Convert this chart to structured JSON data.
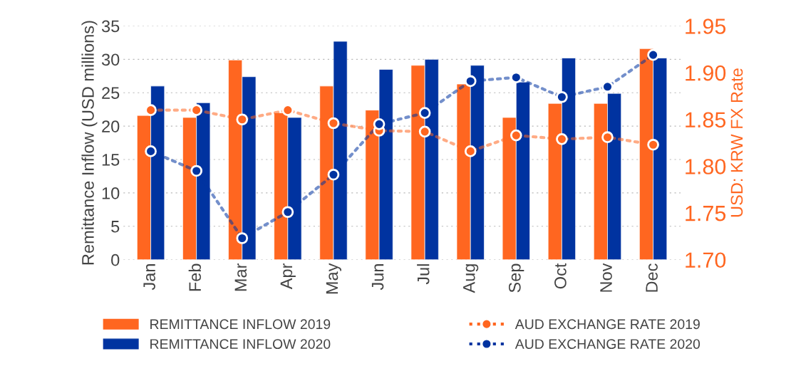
{
  "chart_data": {
    "type": "bar",
    "ylabel": "Remittance Inflow (USD millions)",
    "y2label": "USD: KRW FX Rate",
    "categories": [
      "Jan",
      "Feb",
      "Mar",
      "Apr",
      "May",
      "Jun",
      "Jul",
      "Aug",
      "Sep",
      "Oct",
      "Nov",
      "Dec"
    ],
    "series": [
      {
        "name": "REMITTANCE INFLOW 2019",
        "color": "#ff6620",
        "values": [
          21.6,
          21.3,
          29.9,
          22.0,
          26.0,
          22.4,
          29.1,
          26.3,
          21.3,
          23.4,
          23.4,
          31.6
        ]
      },
      {
        "name": "REMITTANCE INFLOW 2020",
        "color": "#0033a0",
        "values": [
          26.0,
          23.5,
          27.4,
          21.3,
          32.7,
          28.5,
          30.0,
          29.1,
          26.6,
          30.2,
          24.9,
          30.2
        ]
      },
      {
        "name": "AUD EXCHANGE RATE 2019",
        "type": "line",
        "axis": "y2",
        "color": "#ff6620",
        "marker": "circle",
        "line_style": "dotted",
        "values": [
          1.86,
          1.86,
          1.85,
          1.86,
          1.846,
          1.838,
          1.837,
          1.816,
          1.833,
          1.829,
          1.831,
          1.823
        ]
      },
      {
        "name": "AUD EXCHANGE RATE 2020",
        "type": "line",
        "axis": "y2",
        "color": "#0033a0",
        "marker": "circle",
        "line_style": "dotted",
        "values": [
          1.816,
          1.795,
          1.723,
          1.751,
          1.791,
          1.845,
          1.857,
          1.891,
          1.895,
          1.874,
          1.885,
          1.919
        ]
      }
    ],
    "ylim": [
      0,
      35
    ],
    "yticks": [
      0,
      5,
      10,
      15,
      20,
      25,
      30,
      35
    ],
    "y2lim": [
      1.7,
      1.95
    ],
    "y2ticks": [
      {
        "value": 1.7,
        "label": "1.70"
      },
      {
        "value": 1.75,
        "label": "1.75"
      },
      {
        "value": 1.8,
        "label": "1.80"
      },
      {
        "value": 1.85,
        "label": "1.85"
      },
      {
        "value": 1.9,
        "label": "1.90"
      },
      {
        "value": 1.95,
        "label": "1.95"
      }
    ],
    "grid": "y",
    "legend": "bottom"
  }
}
